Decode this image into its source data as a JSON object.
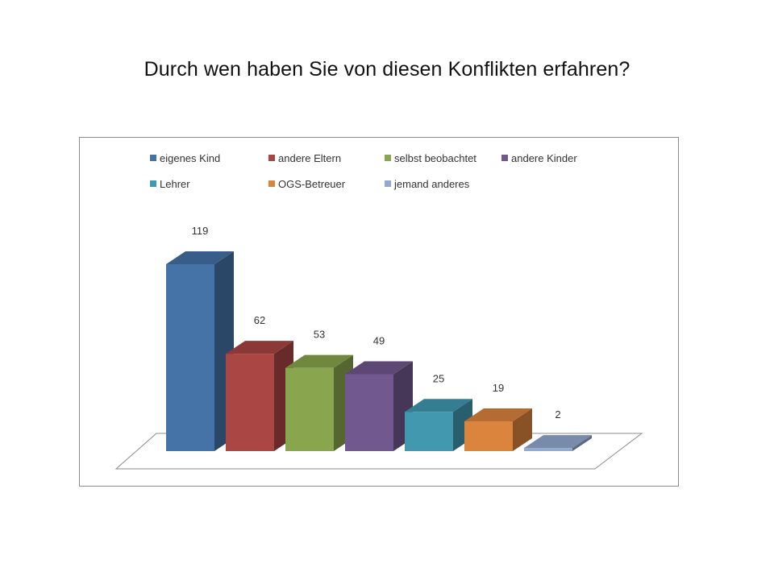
{
  "slide": {
    "title": "Durch wen haben Sie von diesen Konflikten erfahren?"
  },
  "chart_data": {
    "type": "bar",
    "title": "",
    "xlabel": "",
    "ylabel": "",
    "ylim": [
      0,
      119
    ],
    "grid": false,
    "legend_position": "top",
    "categories": [
      "eigenes Kind",
      "andere Eltern",
      "selbst beobachtet",
      "andere Kinder",
      "Lehrer",
      "OGS-Betreuer",
      "jemand anderes"
    ],
    "values": [
      119,
      62,
      53,
      49,
      25,
      19,
      2
    ],
    "colors": [
      "#4572A7",
      "#AA4643",
      "#89A54E",
      "#71588F",
      "#4198AF",
      "#DB843D",
      "#93A9CF"
    ]
  }
}
